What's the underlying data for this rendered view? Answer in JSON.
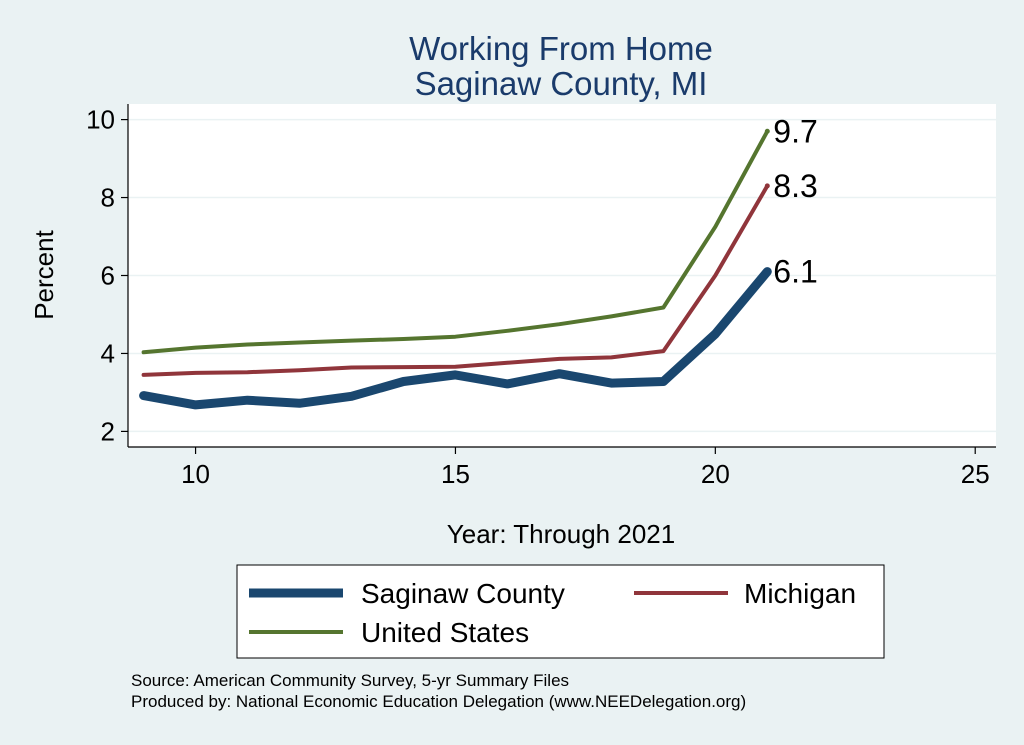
{
  "chart_data": {
    "type": "line",
    "title": [
      "Working From Home",
      "Saginaw County, MI"
    ],
    "xlabel": "Year: Through 2021",
    "ylabel": "Percent",
    "xlim": [
      8.7,
      25.4
    ],
    "ylim": [
      1.6,
      10.4
    ],
    "xticks": [
      10,
      15,
      20,
      25
    ],
    "yticks": [
      2,
      4,
      6,
      8,
      10
    ],
    "grid": true,
    "legend_position": "bottom",
    "x": [
      9,
      10,
      11,
      12,
      13,
      14,
      15,
      16,
      17,
      18,
      19,
      20,
      21
    ],
    "series": [
      {
        "name": "Saginaw County",
        "color": "#1a476f",
        "values": [
          2.92,
          2.68,
          2.8,
          2.72,
          2.9,
          3.28,
          3.45,
          3.22,
          3.48,
          3.24,
          3.28,
          4.5,
          6.1
        ],
        "end_label": "6.1"
      },
      {
        "name": "Michigan",
        "color": "#90353b",
        "values": [
          3.45,
          3.5,
          3.52,
          3.57,
          3.64,
          3.65,
          3.66,
          3.76,
          3.86,
          3.9,
          4.06,
          6.0,
          8.3
        ],
        "end_label": "8.3"
      },
      {
        "name": "United States",
        "color": "#55752f",
        "values": [
          4.03,
          4.15,
          4.23,
          4.28,
          4.33,
          4.37,
          4.43,
          4.58,
          4.75,
          4.95,
          5.18,
          7.25,
          9.7
        ],
        "end_label": "9.7"
      }
    ]
  },
  "footer": {
    "source": "Source: American Community Survey, 5-yr Summary Files",
    "produced": "Produced by: National Economic Education Delegation (www.NEEDelegation.org)"
  }
}
